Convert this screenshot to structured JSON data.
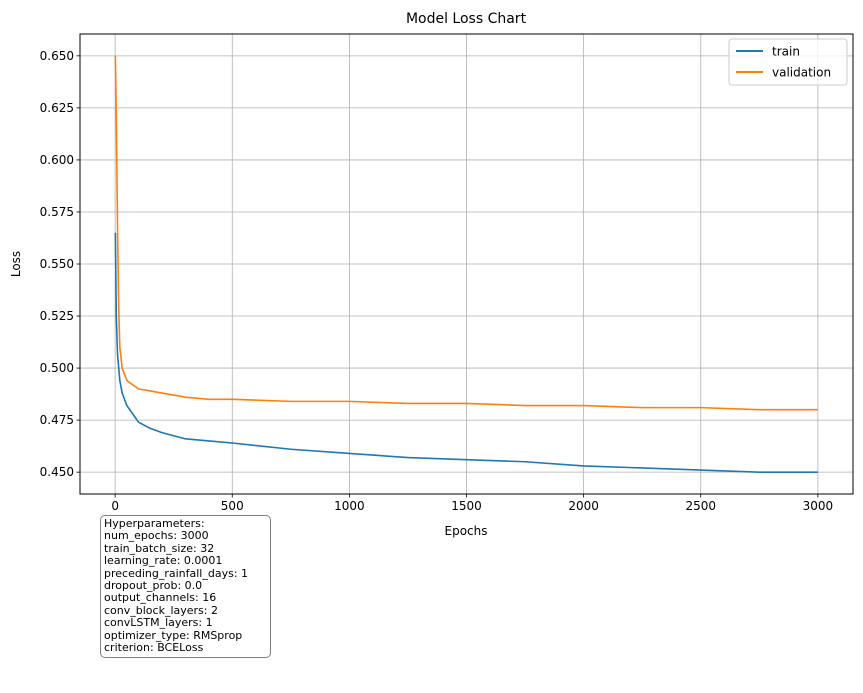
{
  "chart_data": {
    "type": "line",
    "title": "Model Loss Chart",
    "xlabel": "Epochs",
    "ylabel": "Loss",
    "xlim": [
      -150,
      3150
    ],
    "ylim": [
      0.4395,
      0.6605
    ],
    "x_ticks": [
      0,
      500,
      1000,
      1500,
      2000,
      2500,
      3000
    ],
    "x_tick_labels": [
      "0",
      "500",
      "1000",
      "1500",
      "2000",
      "2500",
      "3000"
    ],
    "y_ticks": [
      0.45,
      0.475,
      0.5,
      0.525,
      0.55,
      0.575,
      0.6,
      0.625,
      0.65
    ],
    "y_tick_labels": [
      "0.450",
      "0.475",
      "0.500",
      "0.525",
      "0.550",
      "0.575",
      "0.600",
      "0.625",
      "0.650"
    ],
    "grid": true,
    "legend_position": "upper right",
    "series": [
      {
        "name": "train",
        "color": "#1f77b4",
        "x": [
          1,
          5,
          10,
          20,
          30,
          50,
          75,
          100,
          150,
          200,
          300,
          400,
          500,
          750,
          1000,
          1250,
          1500,
          1750,
          2000,
          2250,
          2500,
          2750,
          3000
        ],
        "y": [
          0.565,
          0.525,
          0.507,
          0.494,
          0.488,
          0.482,
          0.478,
          0.474,
          0.471,
          0.469,
          0.466,
          0.465,
          0.464,
          0.461,
          0.459,
          0.457,
          0.456,
          0.455,
          0.453,
          0.452,
          0.451,
          0.45,
          0.45
        ]
      },
      {
        "name": "validation",
        "color": "#ff7f0e",
        "x": [
          1,
          5,
          10,
          15,
          20,
          30,
          50,
          75,
          100,
          150,
          200,
          300,
          400,
          500,
          750,
          1000,
          1250,
          1500,
          1750,
          2000,
          2250,
          2500,
          2750,
          3000
        ],
        "y": [
          0.65,
          0.62,
          0.57,
          0.53,
          0.51,
          0.5,
          0.494,
          0.492,
          0.49,
          0.489,
          0.488,
          0.486,
          0.485,
          0.485,
          0.484,
          0.484,
          0.483,
          0.483,
          0.482,
          0.482,
          0.481,
          0.481,
          0.48,
          0.48
        ]
      }
    ]
  },
  "hyperparameters": {
    "title": "Hyperparameters:",
    "lines": [
      "num_epochs: 3000",
      "train_batch_size: 32",
      "learning_rate: 0.0001",
      "preceding_rainfall_days: 1",
      "dropout_prob: 0.0",
      "output_channels: 16",
      "conv_block_layers: 2",
      "convLSTM_layers: 1",
      "optimizer_type: RMSprop",
      "criterion: BCELoss"
    ]
  }
}
